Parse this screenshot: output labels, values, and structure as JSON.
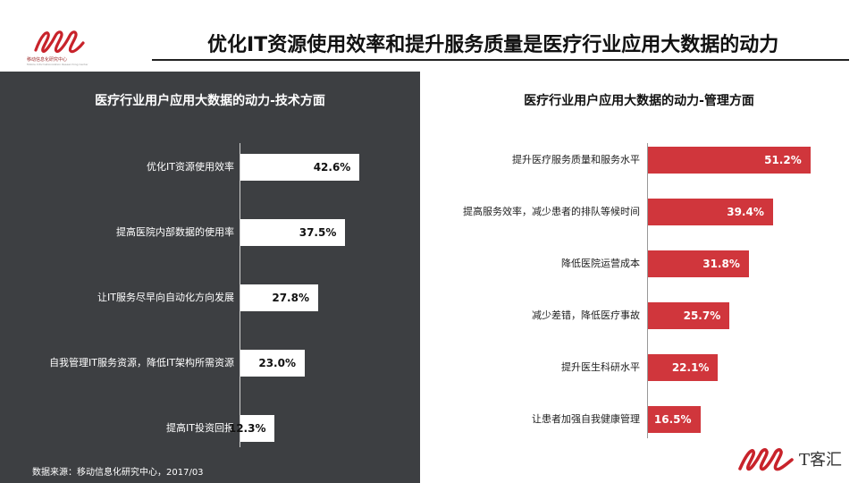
{
  "header": {
    "title": "优化IT资源使用效率和提升服务质量是医疗行业应用大数据的动力",
    "logo_caption": "移动信息化研究中心",
    "logo_sub": "Mobile Informationization Researching Center"
  },
  "footer": {
    "source": "数据来源：移动信息化研究中心，2017/03",
    "brand": "T客汇"
  },
  "colors": {
    "left_bg": "#3d3f42",
    "left_bar": "#ffffff",
    "right_bar": "#d0363c",
    "accent": "#c8232b"
  },
  "chart_data": [
    {
      "type": "bar",
      "orientation": "horizontal",
      "title": "医疗行业用户应用大数据的动力-技术方面",
      "categories": [
        "优化IT资源使用效率",
        "提高医院内部数据的使用率",
        "让IT服务尽早向自动化方向发展",
        "自我管理IT服务资源，降低IT架构所需资源",
        "提高IT投资回报"
      ],
      "values": [
        42.6,
        37.5,
        27.8,
        23.0,
        12.3
      ],
      "value_labels": [
        "42.6%",
        "37.5%",
        "27.8%",
        "23.0%",
        "12.3%"
      ],
      "xlim": [
        0,
        100
      ],
      "grid": false
    },
    {
      "type": "bar",
      "orientation": "horizontal",
      "title": "医疗行业用户应用大数据的动力-管理方面",
      "categories": [
        "提升医疗服务质量和服务水平",
        "提高服务效率，减少患者的排队等候时间",
        "降低医院运营成本",
        "减少差错，降低医疗事故",
        "提升医生科研水平",
        "让患者加强自我健康管理"
      ],
      "values": [
        51.2,
        39.4,
        31.8,
        25.7,
        22.1,
        16.5
      ],
      "value_labels": [
        "51.2%",
        "39.4%",
        "31.8%",
        "25.7%",
        "22.1%",
        "16.5%"
      ],
      "xlim": [
        0,
        100
      ],
      "grid": false
    }
  ]
}
